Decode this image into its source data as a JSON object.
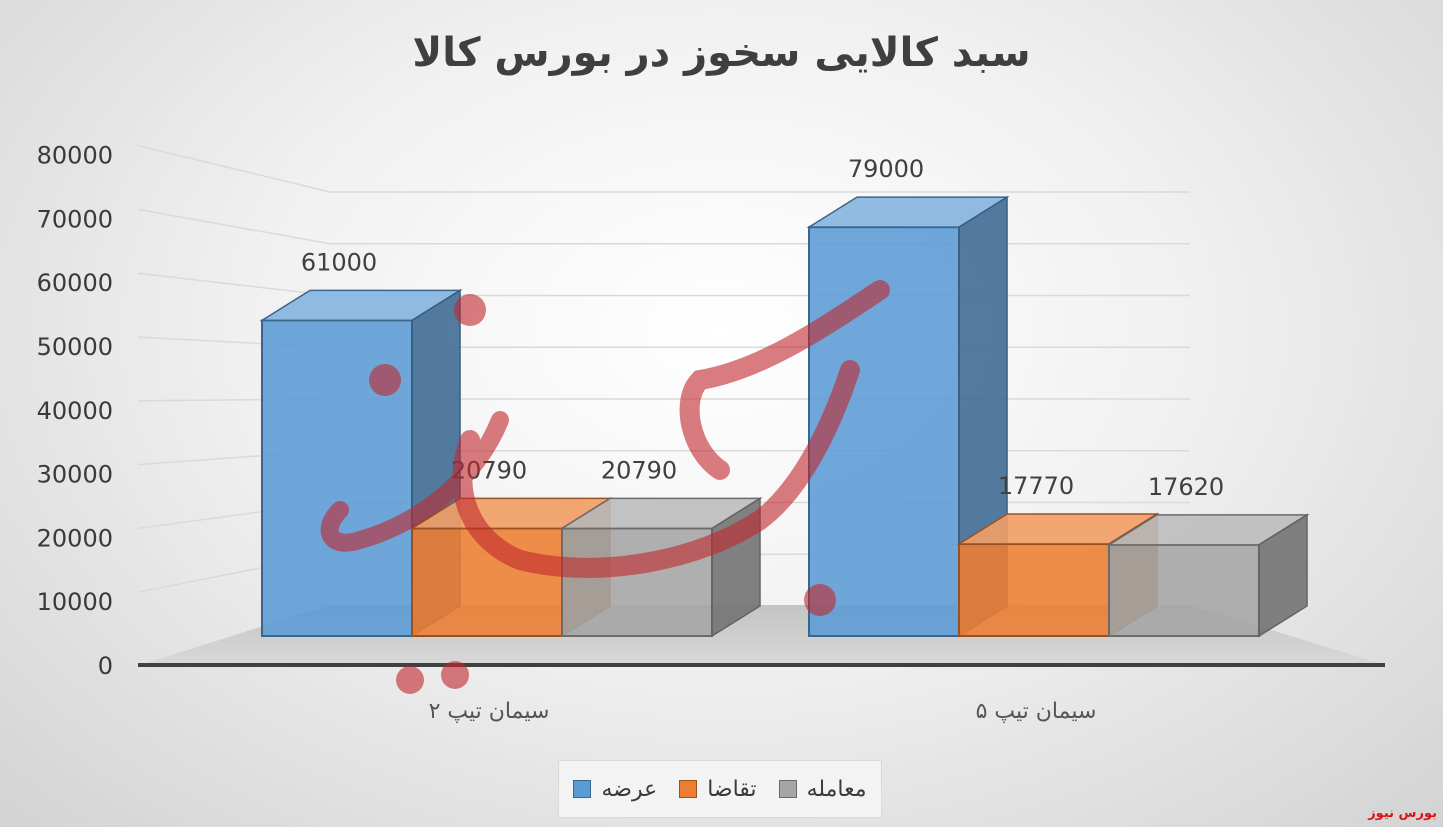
{
  "chart_data": {
    "type": "bar",
    "title": "سبد کالایی سخوز در بورس کالا",
    "categories": [
      "سیمان تیپ ۲",
      "سیمان تیپ ۵"
    ],
    "series": [
      {
        "name": "عرضه",
        "values": [
          61000,
          79000
        ],
        "color": "#5b9bd5"
      },
      {
        "name": "تقاضا",
        "values": [
          20790,
          17770
        ],
        "color": "#ed7d31"
      },
      {
        "name": "معامله",
        "values": [
          20790,
          17620
        ],
        "color": "#a5a5a5"
      }
    ],
    "ylim": [
      0,
      80000
    ],
    "yticks": [
      0,
      10000,
      20000,
      30000,
      40000,
      50000,
      60000,
      70000,
      80000
    ],
    "legend_position": "bottom",
    "grid": true,
    "three_d": true
  },
  "watermark": {
    "corner_text": "بورس نیوز"
  }
}
